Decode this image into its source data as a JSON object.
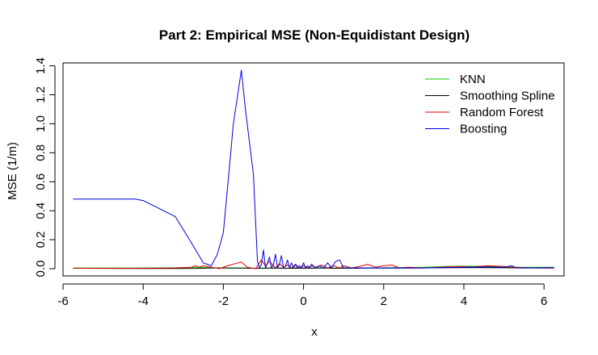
{
  "chart_data": {
    "type": "line",
    "title": "Part 2: Empirical MSE (Non-Equidistant Design)",
    "xlabel": "x",
    "ylabel": "MSE (1/m)",
    "xlim": [
      -6.0,
      6.5
    ],
    "ylim": [
      -0.05,
      1.42
    ],
    "xticks": [
      -6,
      -4,
      -2,
      0,
      2,
      4,
      6
    ],
    "yticks": [
      0.0,
      0.2,
      0.4,
      0.6,
      0.8,
      1.0,
      1.2,
      1.4
    ],
    "xtick_labels": [
      "-6",
      "-4",
      "-2",
      "0",
      "2",
      "4",
      "6"
    ],
    "ytick_labels": [
      "0.0",
      "0.2",
      "0.4",
      "0.6",
      "0.8",
      "1.0",
      "1.2",
      "1.4"
    ],
    "grid": false,
    "legend_position": "top-right",
    "series": [
      {
        "name": "KNN",
        "color": "#00cd00",
        "x": [
          -5.75,
          -4.2,
          -3.2,
          -2.8,
          -2.6,
          -2.4,
          -2.2,
          -2.0,
          -1.8,
          -1.5,
          -1.2,
          -1.0,
          -0.8,
          -0.6,
          -0.4,
          -0.2,
          0.0,
          0.2,
          0.5,
          0.8,
          1.0,
          1.5,
          2.0,
          2.5,
          3.0,
          3.5,
          4.0,
          4.5,
          5.0,
          5.5,
          6.25
        ],
        "y": [
          0.005,
          0.005,
          0.006,
          0.008,
          0.01,
          0.008,
          0.005,
          0.004,
          0.005,
          0.004,
          0.003,
          0.004,
          0.005,
          0.004,
          0.003,
          0.005,
          0.004,
          0.005,
          0.006,
          0.004,
          0.006,
          0.005,
          0.006,
          0.008,
          0.01,
          0.015,
          0.017,
          0.016,
          0.012,
          0.01,
          0.01
        ]
      },
      {
        "name": "Smoothing Spline",
        "color": "#000000",
        "x": [
          -5.75,
          -4.2,
          -3.2,
          -2.8,
          -2.4,
          -2.0,
          -1.6,
          -1.2,
          -0.8,
          -0.4,
          0.0,
          0.4,
          0.8,
          1.2,
          1.6,
          2.0,
          2.5,
          3.0,
          3.5,
          4.0,
          4.5,
          5.0,
          5.5,
          6.25
        ],
        "y": [
          0.003,
          0.002,
          0.002,
          0.002,
          0.004,
          0.005,
          0.004,
          0.003,
          0.004,
          0.003,
          0.003,
          0.004,
          0.003,
          0.003,
          0.004,
          0.004,
          0.004,
          0.005,
          0.006,
          0.007,
          0.007,
          0.006,
          0.005,
          0.004
        ]
      },
      {
        "name": "Random Forest",
        "color": "#e00000",
        "x": [
          -5.75,
          -4.2,
          -3.2,
          -2.8,
          -2.7,
          -2.6,
          -2.5,
          -2.3,
          -2.1,
          -1.9,
          -1.7,
          -1.55,
          -1.4,
          -1.2,
          -1.05,
          -0.95,
          -0.85,
          -0.7,
          -0.6,
          -0.5,
          -0.4,
          -0.3,
          -0.2,
          -0.1,
          0.0,
          0.1,
          0.2,
          0.3,
          0.45,
          0.6,
          0.75,
          0.9,
          1.0,
          1.2,
          1.4,
          1.6,
          1.8,
          2.0,
          2.2,
          2.4,
          2.6,
          3.0,
          3.4,
          3.8,
          4.2,
          4.6,
          5.0,
          5.2,
          5.4,
          5.8,
          6.25
        ],
        "y": [
          0.003,
          0.003,
          0.005,
          0.01,
          0.02,
          0.01,
          0.02,
          0.01,
          0.0,
          0.02,
          0.035,
          0.045,
          0.01,
          0.0,
          0.06,
          0.02,
          0.05,
          0.005,
          0.035,
          0.01,
          0.025,
          0.005,
          0.03,
          0.005,
          0.02,
          0.005,
          0.02,
          0.01,
          0.025,
          0.005,
          0.02,
          0.005,
          0.02,
          0.005,
          0.015,
          0.03,
          0.01,
          0.02,
          0.025,
          0.005,
          0.01,
          0.005,
          0.01,
          0.015,
          0.012,
          0.02,
          0.015,
          0.01,
          0.008,
          0.005,
          0.005
        ]
      },
      {
        "name": "Boosting",
        "color": "#0000e0",
        "x": [
          -5.75,
          -4.2,
          -4.0,
          -3.2,
          -2.8,
          -2.5,
          -2.3,
          -2.15,
          -2.0,
          -1.9,
          -1.75,
          -1.55,
          -1.45,
          -1.25,
          -1.15,
          -1.1,
          -1.05,
          -1.0,
          -0.95,
          -0.9,
          -0.85,
          -0.8,
          -0.75,
          -0.7,
          -0.65,
          -0.6,
          -0.55,
          -0.5,
          -0.45,
          -0.4,
          -0.35,
          -0.3,
          -0.25,
          -0.2,
          -0.15,
          -0.1,
          -0.05,
          0.0,
          0.05,
          0.1,
          0.15,
          0.2,
          0.3,
          0.4,
          0.5,
          0.6,
          0.7,
          0.8,
          0.9,
          1.0,
          1.1,
          1.3,
          1.5,
          1.8,
          2.0,
          2.3,
          2.6,
          3.0,
          3.5,
          4.0,
          4.5,
          5.0,
          5.2,
          5.3,
          5.6,
          6.25
        ],
        "y": [
          0.48,
          0.48,
          0.47,
          0.36,
          0.18,
          0.04,
          0.02,
          0.1,
          0.25,
          0.55,
          1.0,
          1.37,
          1.1,
          0.65,
          0.05,
          0.005,
          0.03,
          0.13,
          0.005,
          0.04,
          0.08,
          0.005,
          0.03,
          0.1,
          0.005,
          0.03,
          0.09,
          0.005,
          0.02,
          0.06,
          0.005,
          0.04,
          0.005,
          0.03,
          0.005,
          0.02,
          0.005,
          0.04,
          0.005,
          0.02,
          0.005,
          0.03,
          0.005,
          0.02,
          0.005,
          0.04,
          0.005,
          0.05,
          0.06,
          0.005,
          0.005,
          0.005,
          0.005,
          0.005,
          0.005,
          0.005,
          0.005,
          0.005,
          0.008,
          0.01,
          0.012,
          0.01,
          0.02,
          0.005,
          0.005,
          0.008
        ]
      }
    ]
  }
}
